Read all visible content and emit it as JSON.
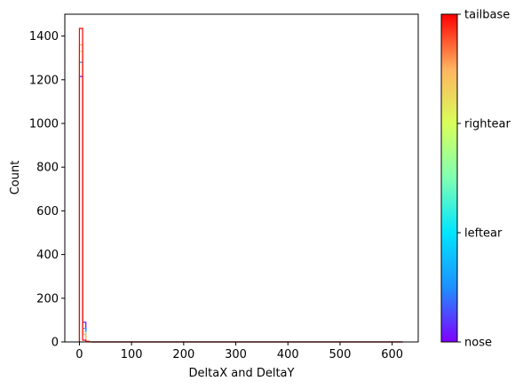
{
  "chart_data": {
    "type": "histogram",
    "xlabel": "DeltaX and DeltaY",
    "ylabel": "Count",
    "xlim": [
      -28,
      650
    ],
    "ylim": [
      0,
      1500
    ],
    "x_ticks": [
      0,
      100,
      200,
      300,
      400,
      500,
      600
    ],
    "y_ticks": [
      0,
      200,
      400,
      600,
      800,
      1000,
      1200,
      1400
    ],
    "x_tick_labels": [
      "0",
      "100",
      "200",
      "300",
      "400",
      "500",
      "600"
    ],
    "y_tick_labels": [
      "0",
      "200",
      "400",
      "600",
      "800",
      "1000",
      "1200",
      "1400"
    ],
    "bin_width": 6.2,
    "bin_start": 0,
    "bins_to": 620,
    "histtype": "step",
    "grid": false,
    "series": [
      {
        "name": "nose",
        "color": "#7f00ff",
        "bins": [
          1215,
          90,
          4,
          1
        ]
      },
      {
        "name": "leftear",
        "color": "#1996f3",
        "bins": [
          1280,
          62,
          3,
          1
        ]
      },
      {
        "name": "rightear",
        "color": "#b2f396",
        "bins": [
          1330,
          45,
          3,
          1
        ]
      },
      {
        "name": "",
        "color": "#ffb360",
        "bins": [
          1360,
          35,
          2,
          1
        ]
      },
      {
        "name": "tailbase",
        "color": "#ff0000",
        "bins": [
          1435,
          8,
          1,
          0
        ]
      }
    ],
    "colorbar": {
      "colors": [
        "#7f00ff",
        "#1e90ff",
        "#00e5ff",
        "#80ffb3",
        "#d9ff5a",
        "#ffb360",
        "#ff0000"
      ],
      "tick_labels": [
        "nose",
        "leftear",
        "rightear",
        "tailbase"
      ]
    }
  }
}
